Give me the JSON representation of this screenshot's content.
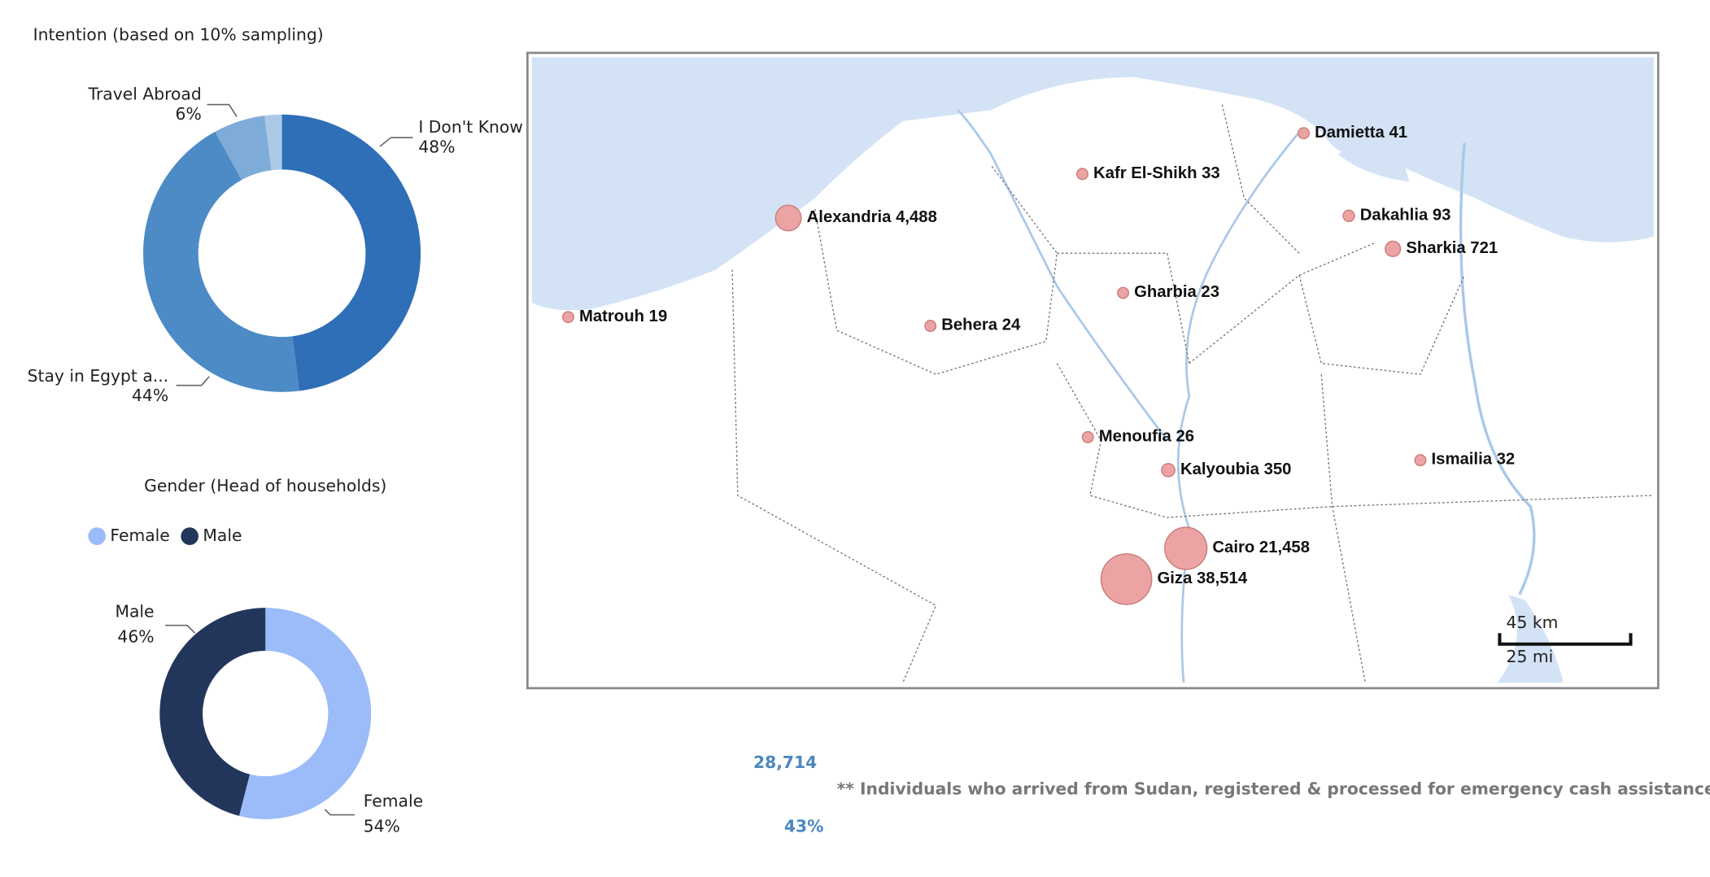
{
  "chart_data": [
    {
      "type": "donut",
      "title": "Intention (based on 10% sampling)",
      "categories": [
        "I Don't Know",
        "Stay in Egypt a...",
        "Travel Abroad",
        null
      ],
      "values": [
        48,
        44,
        6,
        2
      ],
      "value_labels": [
        "48%",
        "44%",
        "6%",
        null
      ],
      "colors": [
        "#2f6fb7",
        "#4c8bc6",
        "#7eabd8",
        "#abc9e7"
      ]
    },
    {
      "type": "donut",
      "title": "Gender (Head of households)",
      "categories": [
        "Female",
        "Male"
      ],
      "values": [
        54,
        46
      ],
      "value_labels": [
        "54%",
        "46%"
      ],
      "colors": [
        "#9bbcf8",
        "#22355b"
      ],
      "legend": "top"
    },
    {
      "type": "bubble",
      "categories": [
        "Matrouh",
        "Alexandria",
        "Behera",
        "Kafr El-Shikh",
        "Gharbia",
        "Damietta",
        "Dakahlia",
        "Sharkia",
        "Menoufia",
        "Kalyoubia",
        "Ismailia",
        "Cairo",
        "Giza"
      ],
      "values": [
        19,
        4488,
        24,
        33,
        23,
        41,
        93,
        721,
        26,
        350,
        32,
        21458,
        38514
      ],
      "value_labels": [
        "19",
        "4,488",
        "24",
        "33",
        "23",
        "41",
        "93",
        "721",
        "26",
        "350",
        "32",
        "21,458",
        "38,514"
      ],
      "color": "#eba3a3"
    }
  ],
  "kpi": {
    "count": "28,714",
    "percent": "43%"
  },
  "footnote": "** Individuals who arrived from Sudan, registered & processed for emergency cash assistance.",
  "scale_bar": {
    "km": "45 km",
    "mi": "25 mi"
  }
}
